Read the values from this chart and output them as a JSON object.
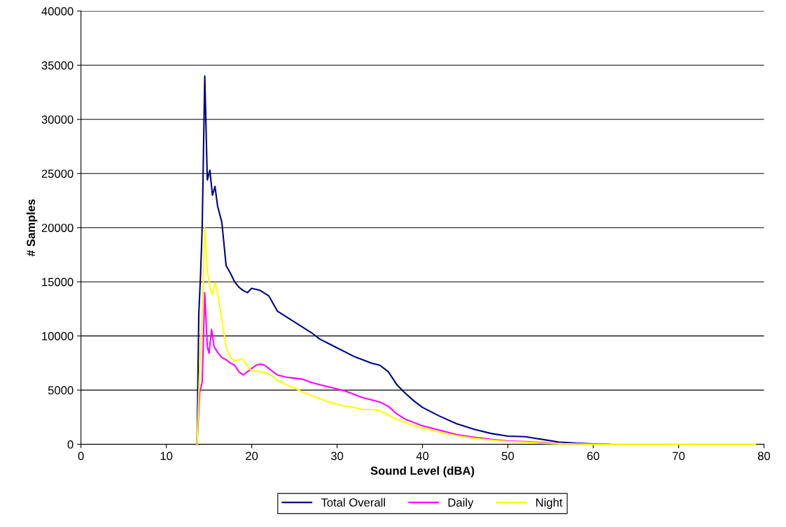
{
  "chart_data": {
    "type": "line",
    "xlabel": "Sound Level (dBA)",
    "ylabel": "# Samples",
    "xlim": [
      0,
      80
    ],
    "xticks": [
      0,
      10,
      20,
      30,
      40,
      50,
      60,
      70,
      80
    ],
    "ylim": [
      0,
      40000
    ],
    "yticks": [
      0,
      5000,
      10000,
      15000,
      20000,
      25000,
      30000,
      35000,
      40000
    ],
    "grid": "y",
    "legend": "bottom",
    "marker": "none",
    "line_style": "solid",
    "series": [
      {
        "name": "Total Overall",
        "color": "#000080",
        "x": [
          13.6,
          13.8,
          14.0,
          14.2,
          14.5,
          14.8,
          15.1,
          15.4,
          15.7,
          16.0,
          16.5,
          17.0,
          17.5,
          18.0,
          18.5,
          19.0,
          19.5,
          20.0,
          20.5,
          21.0,
          22.0,
          23.0,
          24.0,
          25.0,
          26.0,
          27.0,
          28.0,
          29.0,
          30.0,
          31.0,
          32.0,
          33.0,
          34.0,
          35.0,
          36.0,
          37.0,
          38.0,
          39.0,
          40.0,
          42.0,
          44.0,
          46.0,
          48.0,
          50.0,
          52.0,
          54.0,
          56.0,
          58.0,
          60.0,
          62.0
        ],
        "values": [
          0,
          12000,
          15500,
          20000,
          34000,
          24400,
          25300,
          23000,
          23800,
          22000,
          20500,
          16500,
          15800,
          15000,
          14500,
          14200,
          14000,
          14400,
          14300,
          14200,
          13700,
          12300,
          11800,
          11300,
          10800,
          10300,
          9700,
          9300,
          8900,
          8500,
          8100,
          7800,
          7500,
          7300,
          6700,
          5500,
          4700,
          4000,
          3400,
          2600,
          1900,
          1400,
          1000,
          750,
          700,
          450,
          200,
          100,
          40,
          10
        ]
      },
      {
        "name": "Daily",
        "color": "#ff00ff",
        "x": [
          13.6,
          13.9,
          14.2,
          14.5,
          14.8,
          15.0,
          15.3,
          15.6,
          16.0,
          16.5,
          17.0,
          17.5,
          18.0,
          18.5,
          19.0,
          19.5,
          20.0,
          20.5,
          21.0,
          21.5,
          22.0,
          23.0,
          24.0,
          25.0,
          26.0,
          27.0,
          28.0,
          29.0,
          30.0,
          31.0,
          32.0,
          33.0,
          34.0,
          35.0,
          36.0,
          37.0,
          38.0,
          39.0,
          40.0,
          42.0,
          44.0,
          46.0,
          48.0,
          50.0,
          52.0,
          54.0,
          56.0
        ],
        "values": [
          0,
          4800,
          5700,
          14000,
          9000,
          8400,
          10600,
          9000,
          8500,
          8000,
          7800,
          7500,
          7300,
          6700,
          6400,
          6700,
          7000,
          7300,
          7400,
          7300,
          7000,
          6400,
          6200,
          6100,
          6000,
          5700,
          5500,
          5300,
          5100,
          4900,
          4600,
          4300,
          4100,
          3900,
          3500,
          2800,
          2300,
          2000,
          1700,
          1300,
          900,
          650,
          450,
          300,
          250,
          150,
          70
        ]
      },
      {
        "name": "Night",
        "color": "#ffff00",
        "x": [
          13.6,
          13.9,
          14.2,
          14.5,
          14.8,
          15.1,
          15.4,
          15.7,
          16.0,
          16.5,
          17.0,
          17.5,
          18.0,
          18.5,
          18.9,
          19.3,
          19.7,
          20.0,
          21.0,
          22.0,
          23.0,
          24.0,
          25.0,
          26.0,
          27.0,
          28.0,
          29.0,
          30.0,
          31.0,
          32.0,
          33.0,
          34.0,
          35.0,
          36.0,
          37.0,
          38.0,
          39.0,
          40.0,
          42.0,
          44.0,
          46.0,
          48.0,
          50.0,
          52.0,
          54.0,
          56.0,
          58.0,
          60.0,
          79.0
        ],
        "values": [
          0,
          7000,
          12000,
          20000,
          16000,
          14500,
          13800,
          14900,
          14000,
          11500,
          9000,
          8000,
          7700,
          7800,
          7900,
          7500,
          7000,
          6800,
          6700,
          6500,
          5900,
          5500,
          5200,
          4800,
          4500,
          4200,
          3900,
          3700,
          3500,
          3400,
          3200,
          3200,
          3100,
          2700,
          2300,
          2000,
          1700,
          1500,
          1100,
          800,
          550,
          400,
          250,
          200,
          100,
          50,
          20,
          0,
          0
        ]
      }
    ]
  }
}
